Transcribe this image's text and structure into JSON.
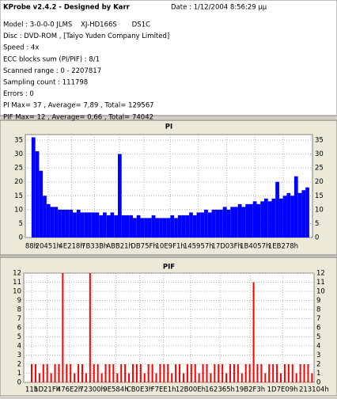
{
  "header": {
    "title": "KProbe v2.4.2 - Designed by Karr",
    "date": "Date : 1/12/2004 8:56:29 μμ"
  },
  "info": [
    "Model : 3-0-0-0 JLMS    XJ-HD166S       DS1C",
    "Disc : DVD-ROM , [Taiyo Yuden Company Limited]",
    "Speed : 4x",
    "ECC blocks sum (PI/PIF) : 8/1",
    "Scanned range : 0 - 2207817",
    "Sampling count : 111798",
    "Errors : 0",
    "PI Max= 37 , Average= 7,89 , Total= 129567",
    "PIF Max= 12 , Average= 0,66 , Total= 74042"
  ],
  "chart_data": [
    {
      "type": "area",
      "title": "PI",
      "color": "#0000ff",
      "grid": true,
      "xlim": [
        -50000,
        2246000
      ],
      "ylim": [
        0,
        37
      ],
      "yticks": [
        0,
        5,
        10,
        15,
        20,
        25,
        30,
        35
      ],
      "xticks": [
        {
          "value": 136,
          "label": "88h"
        },
        {
          "value": 132177,
          "label": "20451h"
        },
        {
          "value": 320024,
          "label": "4E218h"
        },
        {
          "value": 504635,
          "label": "7B33Bh"
        },
        {
          "value": 703265,
          "label": "ABB21h"
        },
        {
          "value": 898911,
          "label": "DB75Fh"
        },
        {
          "value": 1108465,
          "label": "10E9F1h"
        },
        {
          "value": 1333591,
          "label": "145957h"
        },
        {
          "value": 1560639,
          "label": "17D03Fh"
        },
        {
          "value": 1785943,
          "label": "1B4057h"
        },
        {
          "value": 2011768,
          "label": "1EB278h"
        }
      ],
      "x": [
        0,
        30000,
        60000,
        90000,
        120000,
        150000,
        180000,
        210000,
        240000,
        270000,
        300000,
        330000,
        360000,
        390000,
        420000,
        450000,
        480000,
        510000,
        540000,
        570000,
        600000,
        630000,
        660000,
        690000,
        720000,
        750000,
        780000,
        810000,
        840000,
        870000,
        900000,
        930000,
        960000,
        990000,
        1020000,
        1050000,
        1080000,
        1110000,
        1140000,
        1170000,
        1200000,
        1230000,
        1260000,
        1290000,
        1320000,
        1350000,
        1380000,
        1410000,
        1440000,
        1470000,
        1500000,
        1530000,
        1560000,
        1590000,
        1620000,
        1650000,
        1680000,
        1710000,
        1740000,
        1770000,
        1800000,
        1830000,
        1860000,
        1890000,
        1920000,
        1950000,
        1980000,
        2010000,
        2040000,
        2070000,
        2100000,
        2130000,
        2160000,
        2190000
      ],
      "values": [
        36,
        31,
        24,
        15,
        12,
        11,
        11,
        10,
        10,
        10,
        10,
        9,
        10,
        9,
        9,
        9,
        9,
        9,
        8,
        9,
        8,
        9,
        8,
        30,
        8,
        8,
        8,
        7,
        8,
        7,
        7,
        7,
        8,
        7,
        7,
        7,
        7,
        8,
        7,
        8,
        8,
        8,
        9,
        8,
        9,
        9,
        10,
        9,
        10,
        10,
        10,
        11,
        10,
        11,
        11,
        12,
        11,
        12,
        12,
        13,
        12,
        13,
        14,
        13,
        14,
        20,
        14,
        15,
        16,
        15,
        22,
        16,
        17,
        18
      ]
    },
    {
      "type": "bar",
      "title": "PIF",
      "color": "#ff0000",
      "grid": true,
      "xlim": [
        -61000,
        2176000
      ],
      "ylim": [
        0,
        12
      ],
      "yticks": [
        0,
        1,
        2,
        3,
        4,
        5,
        6,
        7,
        8,
        9,
        10,
        11,
        12
      ],
      "xticks": [
        {
          "value": 17,
          "label": "11h"
        },
        {
          "value": 119327,
          "label": "1D21Fh"
        },
        {
          "value": 292578,
          "label": "476E2h"
        },
        {
          "value": 467712,
          "label": "72300h"
        },
        {
          "value": 648580,
          "label": "9E584h"
        },
        {
          "value": 831715,
          "label": "CB0E3h"
        },
        {
          "value": 1015521,
          "label": "F7EE1h"
        },
        {
          "value": 1224718,
          "label": "12B00Eh"
        },
        {
          "value": 1450853,
          "label": "162365h"
        },
        {
          "value": 1684211,
          "label": "19B2F3h"
        },
        {
          "value": 1932809,
          "label": "1D7E09h"
        },
        {
          "value": 2175236,
          "label": "213104h"
        }
      ],
      "x": [
        0,
        30000,
        60000,
        90000,
        120000,
        150000,
        180000,
        210000,
        240000,
        270000,
        300000,
        330000,
        360000,
        390000,
        420000,
        450000,
        480000,
        510000,
        540000,
        570000,
        600000,
        630000,
        660000,
        690000,
        720000,
        750000,
        780000,
        810000,
        840000,
        870000,
        900000,
        930000,
        960000,
        990000,
        1020000,
        1050000,
        1080000,
        1110000,
        1140000,
        1170000,
        1200000,
        1230000,
        1260000,
        1290000,
        1320000,
        1350000,
        1380000,
        1410000,
        1440000,
        1470000,
        1500000,
        1530000,
        1560000,
        1590000,
        1620000,
        1650000,
        1680000,
        1710000,
        1740000,
        1770000,
        1800000,
        1830000,
        1860000,
        1890000,
        1920000,
        1950000,
        1980000,
        2010000,
        2040000,
        2070000,
        2100000,
        2130000,
        2160000,
        2190000
      ],
      "values": [
        2,
        2,
        1,
        2,
        2,
        1,
        2,
        2,
        12,
        2,
        2,
        1,
        2,
        2,
        1,
        12,
        2,
        2,
        1,
        2,
        2,
        2,
        1,
        2,
        2,
        1,
        2,
        2,
        2,
        1,
        2,
        2,
        1,
        2,
        2,
        2,
        1,
        2,
        2,
        1,
        2,
        2,
        2,
        1,
        2,
        2,
        1,
        2,
        2,
        2,
        1,
        2,
        2,
        2,
        1,
        2,
        2,
        11,
        2,
        2,
        1,
        2,
        2,
        2,
        1,
        2,
        2,
        2,
        1,
        2,
        2,
        2,
        1,
        2
      ]
    }
  ]
}
